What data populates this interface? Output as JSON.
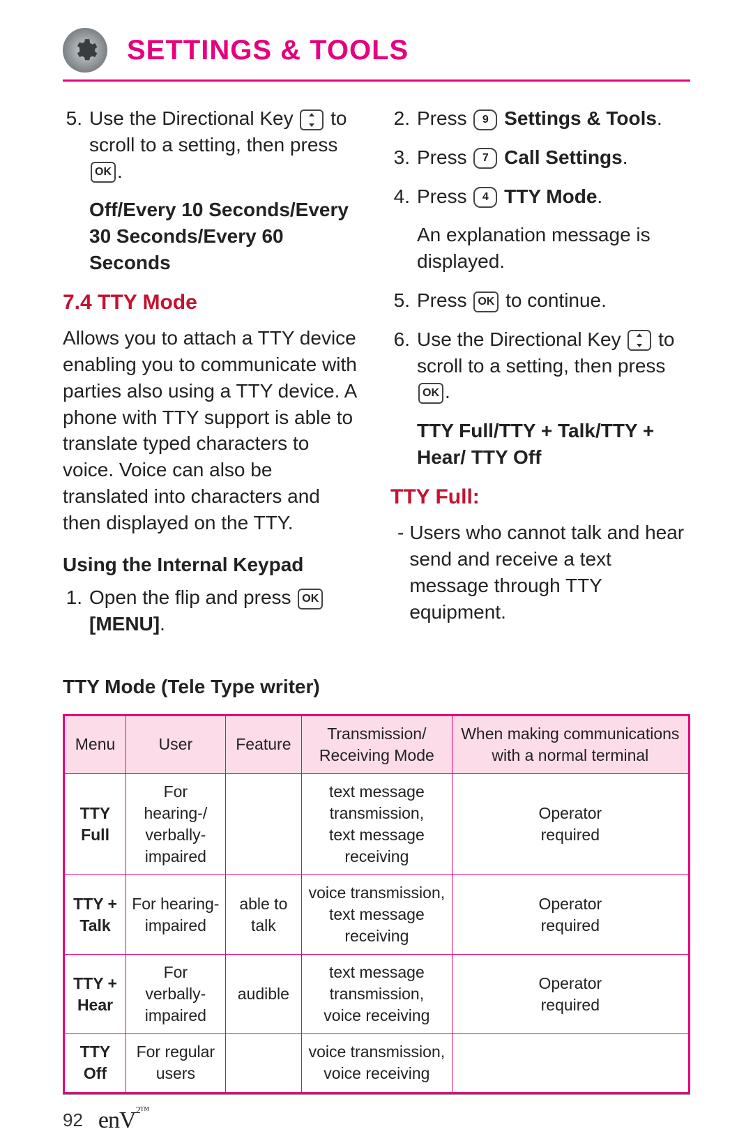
{
  "header": {
    "title": "SETTINGS & TOOLS"
  },
  "left": {
    "step5": {
      "num": "5.",
      "text_a": "Use the Directional Key",
      "text_b": "to scroll to a setting, then press",
      "text_c": "."
    },
    "options": "Off/Every 10 Seconds/Every 30 Seconds/Every 60 Seconds",
    "heading74": "7.4 TTY Mode",
    "tty_desc": "Allows you to attach a TTY device enabling you to communicate with parties also using a TTY device. A phone with TTY support is able to translate typed characters to voice. Voice can also be translated into characters and then displayed on the TTY.",
    "using_keypad": "Using the Internal Keypad",
    "step1": {
      "num": "1.",
      "text_a": "Open the flip and press",
      "menu": "[MENU]",
      "text_b": "."
    }
  },
  "right": {
    "step2": {
      "num": "2.",
      "text": "Press",
      "key": "9",
      "label": "Settings & Tools",
      "end": "."
    },
    "step3": {
      "num": "3.",
      "text": "Press",
      "key": "7",
      "label": "Call Settings",
      "end": "."
    },
    "step4": {
      "num": "4.",
      "text": "Press",
      "key": "4",
      "label": "TTY Mode",
      "end": "."
    },
    "explain": "An explanation message is displayed.",
    "step5": {
      "num": "5.",
      "text_a": "Press",
      "text_b": "to continue."
    },
    "step6": {
      "num": "6.",
      "text_a": "Use the Directional Key",
      "text_b": "to scroll to a setting, then press",
      "text_c": "."
    },
    "options": "TTY Full/TTY + Talk/TTY + Hear/ TTY Off",
    "full_heading": "TTY Full:",
    "full_item": "Users who cannot  talk and hear send and receive a text message through TTY equipment."
  },
  "icons": {
    "ok_label": "OK"
  },
  "table": {
    "title": "TTY Mode (Tele Type writer)",
    "columns": [
      "Menu",
      "User",
      "Feature",
      "Transmission/\nReceiving Mode",
      "When making communications with a normal terminal"
    ],
    "rows": [
      [
        "TTY Full",
        "For hearing-/\nverbally-\nimpaired",
        "",
        "text message transmission,\ntext message receiving",
        "Operator\nrequired"
      ],
      [
        "TTY +\nTalk",
        "For hearing-\nimpaired",
        "able to talk",
        "voice transmission,\ntext message receiving",
        "Operator\nrequired"
      ],
      [
        "TTY +\nHear",
        "For verbally-\nimpaired",
        "audible",
        "text message transmission,\nvoice receiving",
        "Operator\nrequired"
      ],
      [
        "TTY Off",
        "For regular users",
        "",
        "voice transmission,\nvoice receiving",
        ""
      ]
    ],
    "header_bg": "#fddce9",
    "border_color": "#e6007e"
  },
  "footer": {
    "page": "92",
    "brand": "enV",
    "brand_sup": "2",
    "tm": "™"
  },
  "colors": {
    "magenta": "#e6007e",
    "dark_red": "#c41230",
    "text": "#222222"
  }
}
